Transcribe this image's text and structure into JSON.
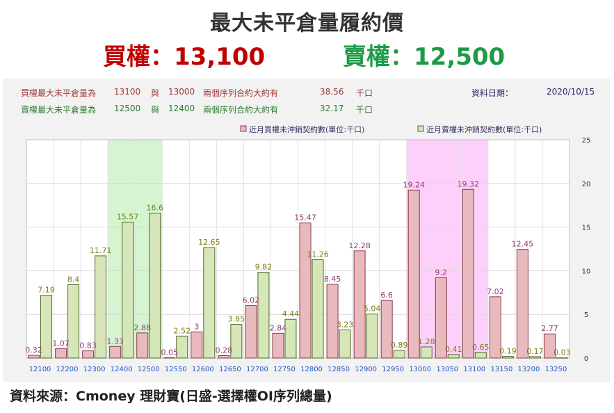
{
  "title": "最大未平倉量履約價",
  "buy_headline": "買權：13,100",
  "sell_headline": "賣權：12,500",
  "info": {
    "buy_label": "買權最大未平倉量為",
    "buy_strike1": "13100",
    "conj1": "與",
    "buy_strike2": "13000",
    "buy_desc": "兩個序列合約大約有",
    "buy_amount": "38.56",
    "buy_unit": "千口",
    "sell_label": "賣權最大未平倉量為",
    "sell_strike1": "12500",
    "conj2": "與",
    "sell_strike2": "12400",
    "sell_desc": "兩個序列合約大約有",
    "sell_amount": "32.17",
    "sell_unit": "千口",
    "date_label": "資料日期：",
    "date_value": "2020/10/15"
  },
  "source": "資料來源：Cmoney 理財寶(日盛-選擇權OI序列總量)",
  "colors": {
    "call_fill": "#e8b9bd",
    "call_stroke": "#8b3a4a",
    "call_label": "#8e3a6e",
    "put_fill": "#d6e6b9",
    "put_stroke": "#4e6a28",
    "put_label": "#7a7a14",
    "highlight_green": "#d4f5d0",
    "highlight_pink": "#fdd0fb",
    "axis_label": "#2255cc"
  },
  "chart_data": {
    "type": "bar",
    "categories": [
      "12100",
      "12200",
      "12300",
      "12400",
      "12500",
      "12550",
      "12600",
      "12650",
      "12700",
      "12750",
      "12800",
      "12850",
      "12900",
      "12950",
      "13000",
      "13050",
      "13100",
      "13150",
      "13200",
      "13250"
    ],
    "series": [
      {
        "name": "近月買權未沖銷契約數(單位:千口)",
        "values": [
          0.32,
          1.07,
          0.83,
          1.33,
          2.88,
          0.05,
          3,
          0.28,
          6.02,
          2.84,
          15.47,
          8.45,
          12.28,
          6.6,
          19.24,
          9.2,
          19.32,
          7.02,
          12.45,
          2.77
        ]
      },
      {
        "name": "近月賣權未沖銷契約數(單位:千口)",
        "values": [
          7.19,
          8.4,
          11.71,
          15.57,
          16.6,
          2.52,
          12.65,
          3.85,
          9.82,
          4.44,
          11.26,
          3.23,
          5.04,
          0.89,
          1.28,
          0.41,
          0.65,
          0.19,
          0.17,
          0.03
        ]
      }
    ],
    "yticks": [
      0,
      5,
      10,
      15,
      20,
      25
    ],
    "ylim": [
      0,
      25
    ],
    "highlight_ranges": [
      {
        "from": "12400",
        "to": "12500",
        "series": "put"
      },
      {
        "from": "13000",
        "to": "13100",
        "series": "call"
      }
    ],
    "legend_position": "top-right",
    "y_axis_side": "right",
    "grid": true
  }
}
